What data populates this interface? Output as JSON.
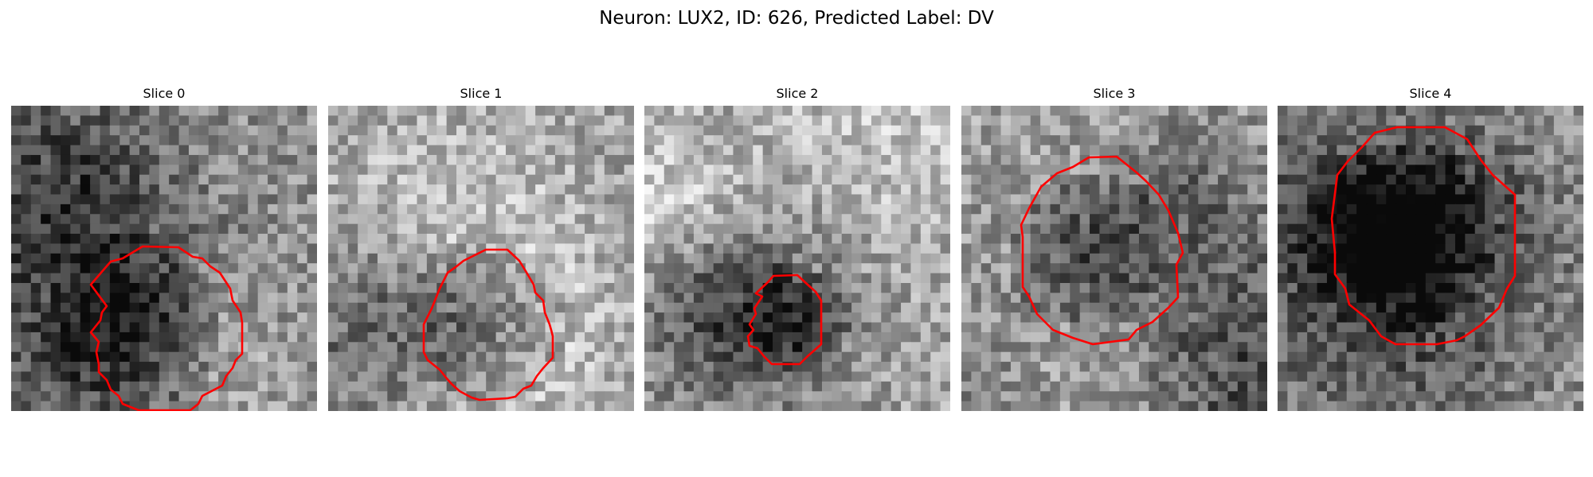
{
  "figure": {
    "title": "Neuron: LUX2, ID: 626, Predicted Label: DV"
  },
  "panels": [
    {
      "title": "Slice 0",
      "seed": 11,
      "bright_bias": 0.02
    },
    {
      "title": "Slice 1",
      "seed": 23,
      "bright_bias": 0.06
    },
    {
      "title": "Slice 2",
      "seed": 37,
      "bright_bias": 0.1
    },
    {
      "title": "Slice 3",
      "seed": 41,
      "bright_bias": 0.08
    },
    {
      "title": "Slice 4",
      "seed": 53,
      "bright_bias": 0.04
    }
  ],
  "colors": {
    "contour": "#ff0000",
    "background": "#ffffff"
  }
}
